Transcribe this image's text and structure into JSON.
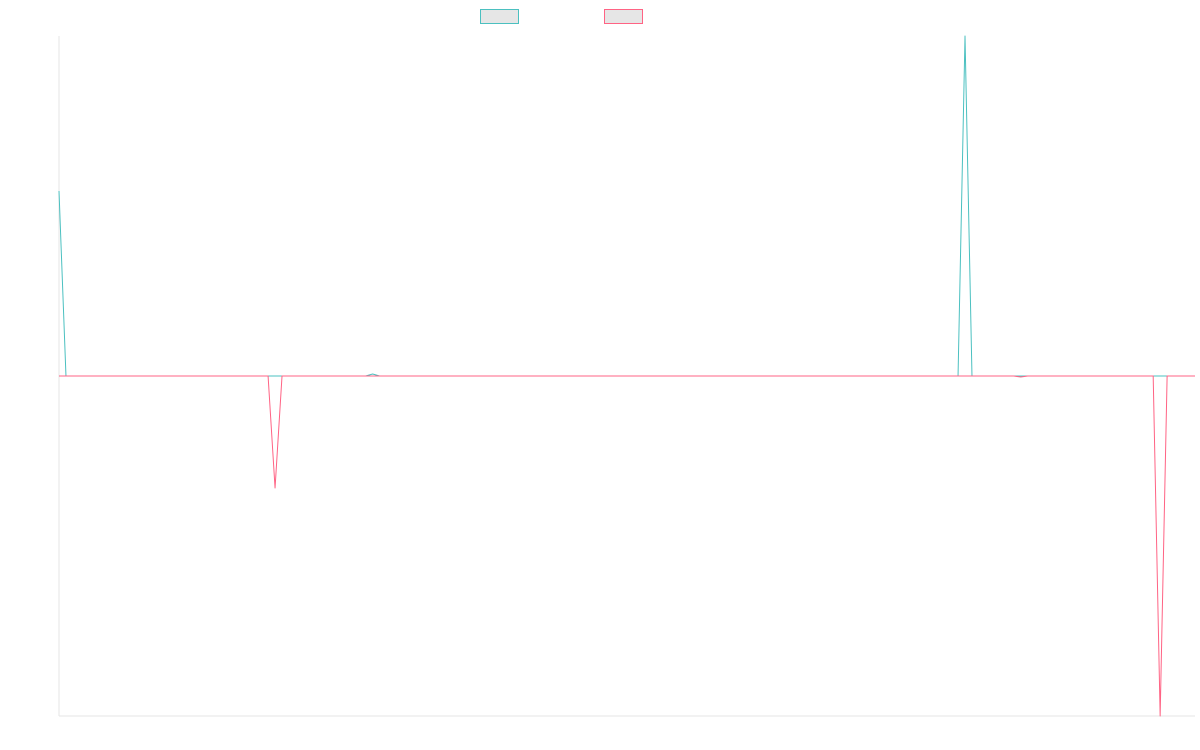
{
  "chart_data": {
    "type": "line",
    "title": "",
    "xlabel": "",
    "ylabel": "",
    "grid": false,
    "legend_position": "top",
    "ylim": [
      -340,
      340
    ],
    "x_count": 164,
    "series": [
      {
        "color": "#4bc0c0",
        "points": [
          {
            "i": 0,
            "y": 185
          },
          {
            "i": 1,
            "y": 0
          },
          {
            "i": 44,
            "y": 0
          },
          {
            "i": 45,
            "y": 2
          },
          {
            "i": 46,
            "y": 0
          },
          {
            "i": 129,
            "y": 0
          },
          {
            "i": 130,
            "y": 340
          },
          {
            "i": 131,
            "y": 0
          },
          {
            "i": 163,
            "y": 0
          }
        ]
      },
      {
        "color": "#ff6384",
        "points": [
          {
            "i": 0,
            "y": 0
          },
          {
            "i": 30,
            "y": 0
          },
          {
            "i": 31,
            "y": -112
          },
          {
            "i": 32,
            "y": 0
          },
          {
            "i": 137,
            "y": 0
          },
          {
            "i": 138,
            "y": -1
          },
          {
            "i": 139,
            "y": 0
          },
          {
            "i": 157,
            "y": 0
          },
          {
            "i": 158,
            "y": -340
          },
          {
            "i": 159,
            "y": 0
          },
          {
            "i": 163,
            "y": 0
          }
        ]
      }
    ]
  }
}
